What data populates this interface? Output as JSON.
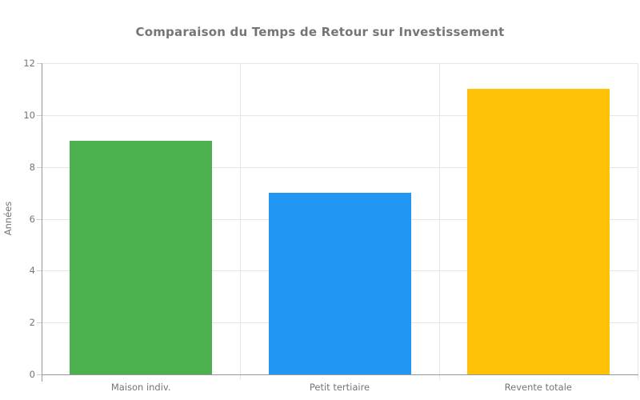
{
  "chart_data": {
    "type": "bar",
    "title": "Comparaison du Temps de Retour sur Investissement",
    "xlabel": "",
    "ylabel": "Années",
    "categories": [
      "Maison indiv.",
      "Petit tertiaire",
      "Revente totale"
    ],
    "values": [
      9,
      7,
      11
    ],
    "bar_colors": [
      "#4caf50",
      "#2196f3",
      "#ffc107"
    ],
    "ylim": [
      0,
      12
    ],
    "yticks": [
      0,
      2,
      4,
      6,
      8,
      10,
      12
    ],
    "grid": "horizontal gridlines at each y tick, vertical gridlines at category boundaries",
    "legend": "none"
  },
  "styles": {
    "background": "#ffffff",
    "title_color": "#757575",
    "axis_title_color": "#757575",
    "tick_label_color": "#757575",
    "axis_line_color": "#999999",
    "gridline_color": "#e6e6e6",
    "tick_mark_color": "#cccccc"
  }
}
